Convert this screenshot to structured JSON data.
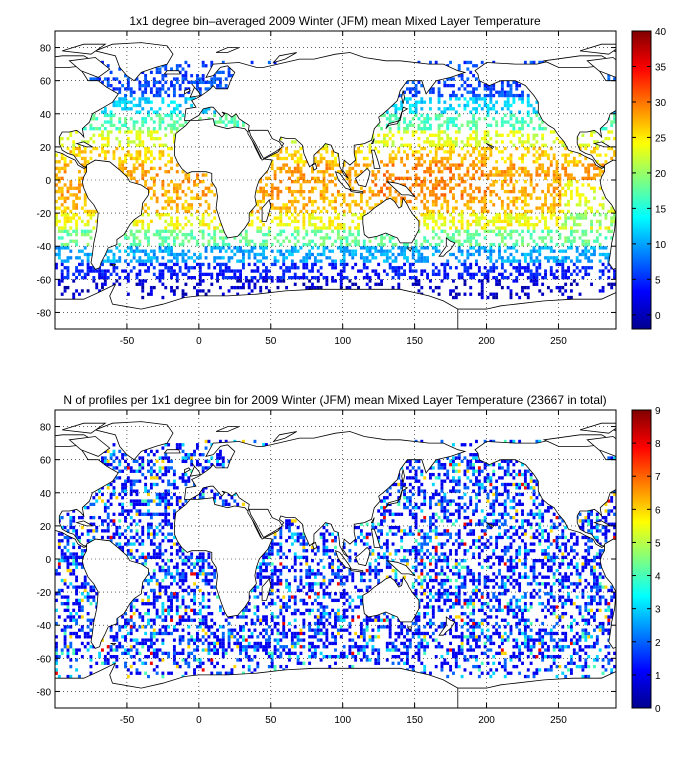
{
  "chart_data": [
    {
      "type": "heatmap",
      "title": "1x1 degree bin–averaged 2009 Winter (JFM) mean Mixed Layer Temperature",
      "xlabel": "",
      "ylabel": "",
      "xlim": [
        -100,
        290
      ],
      "ylim": [
        -90,
        90
      ],
      "x_ticks": [
        "-50",
        "0",
        "50",
        "100",
        "150",
        "200",
        "250"
      ],
      "y_ticks": [
        "80",
        "60",
        "40",
        "20",
        "0",
        "-20",
        "-40",
        "-60",
        "-80"
      ],
      "grid": true,
      "colorbar": {
        "min": -2,
        "max": 40,
        "ticks": [
          "40",
          "35",
          "30",
          "25",
          "20",
          "15",
          "10",
          "5",
          "0"
        ],
        "colormap": "jet"
      },
      "zonal_band_means": [
        {
          "lat": 55,
          "value": 6
        },
        {
          "lat": 45,
          "value": 12
        },
        {
          "lat": 35,
          "value": 17
        },
        {
          "lat": 25,
          "value": 23
        },
        {
          "lat": 15,
          "value": 26
        },
        {
          "lat": 5,
          "value": 28
        },
        {
          "lat": -5,
          "value": 28
        },
        {
          "lat": -15,
          "value": 27
        },
        {
          "lat": -25,
          "value": 24
        },
        {
          "lat": -35,
          "value": 18
        },
        {
          "lat": -45,
          "value": 10
        },
        {
          "lat": -55,
          "value": 4
        },
        {
          "lat": -65,
          "value": 1
        }
      ]
    },
    {
      "type": "heatmap",
      "title": "N of profiles per 1x1 degree bin for 2009 Winter (JFM) mean Mixed Layer Temperature  (23667 in total)",
      "xlabel": "",
      "ylabel": "",
      "xlim": [
        -100,
        290
      ],
      "ylim": [
        -90,
        90
      ],
      "x_ticks": [
        "-50",
        "0",
        "50",
        "100",
        "150",
        "200",
        "250"
      ],
      "y_ticks": [
        "80",
        "60",
        "40",
        "20",
        "0",
        "-20",
        "-40",
        "-60",
        "-80"
      ],
      "grid": true,
      "total_profiles": 23667,
      "colorbar": {
        "min": 0,
        "max": 9,
        "ticks": [
          "9",
          "8",
          "7",
          "6",
          "5",
          "4",
          "3",
          "2",
          "1",
          "0"
        ],
        "colormap": "jet"
      }
    }
  ]
}
